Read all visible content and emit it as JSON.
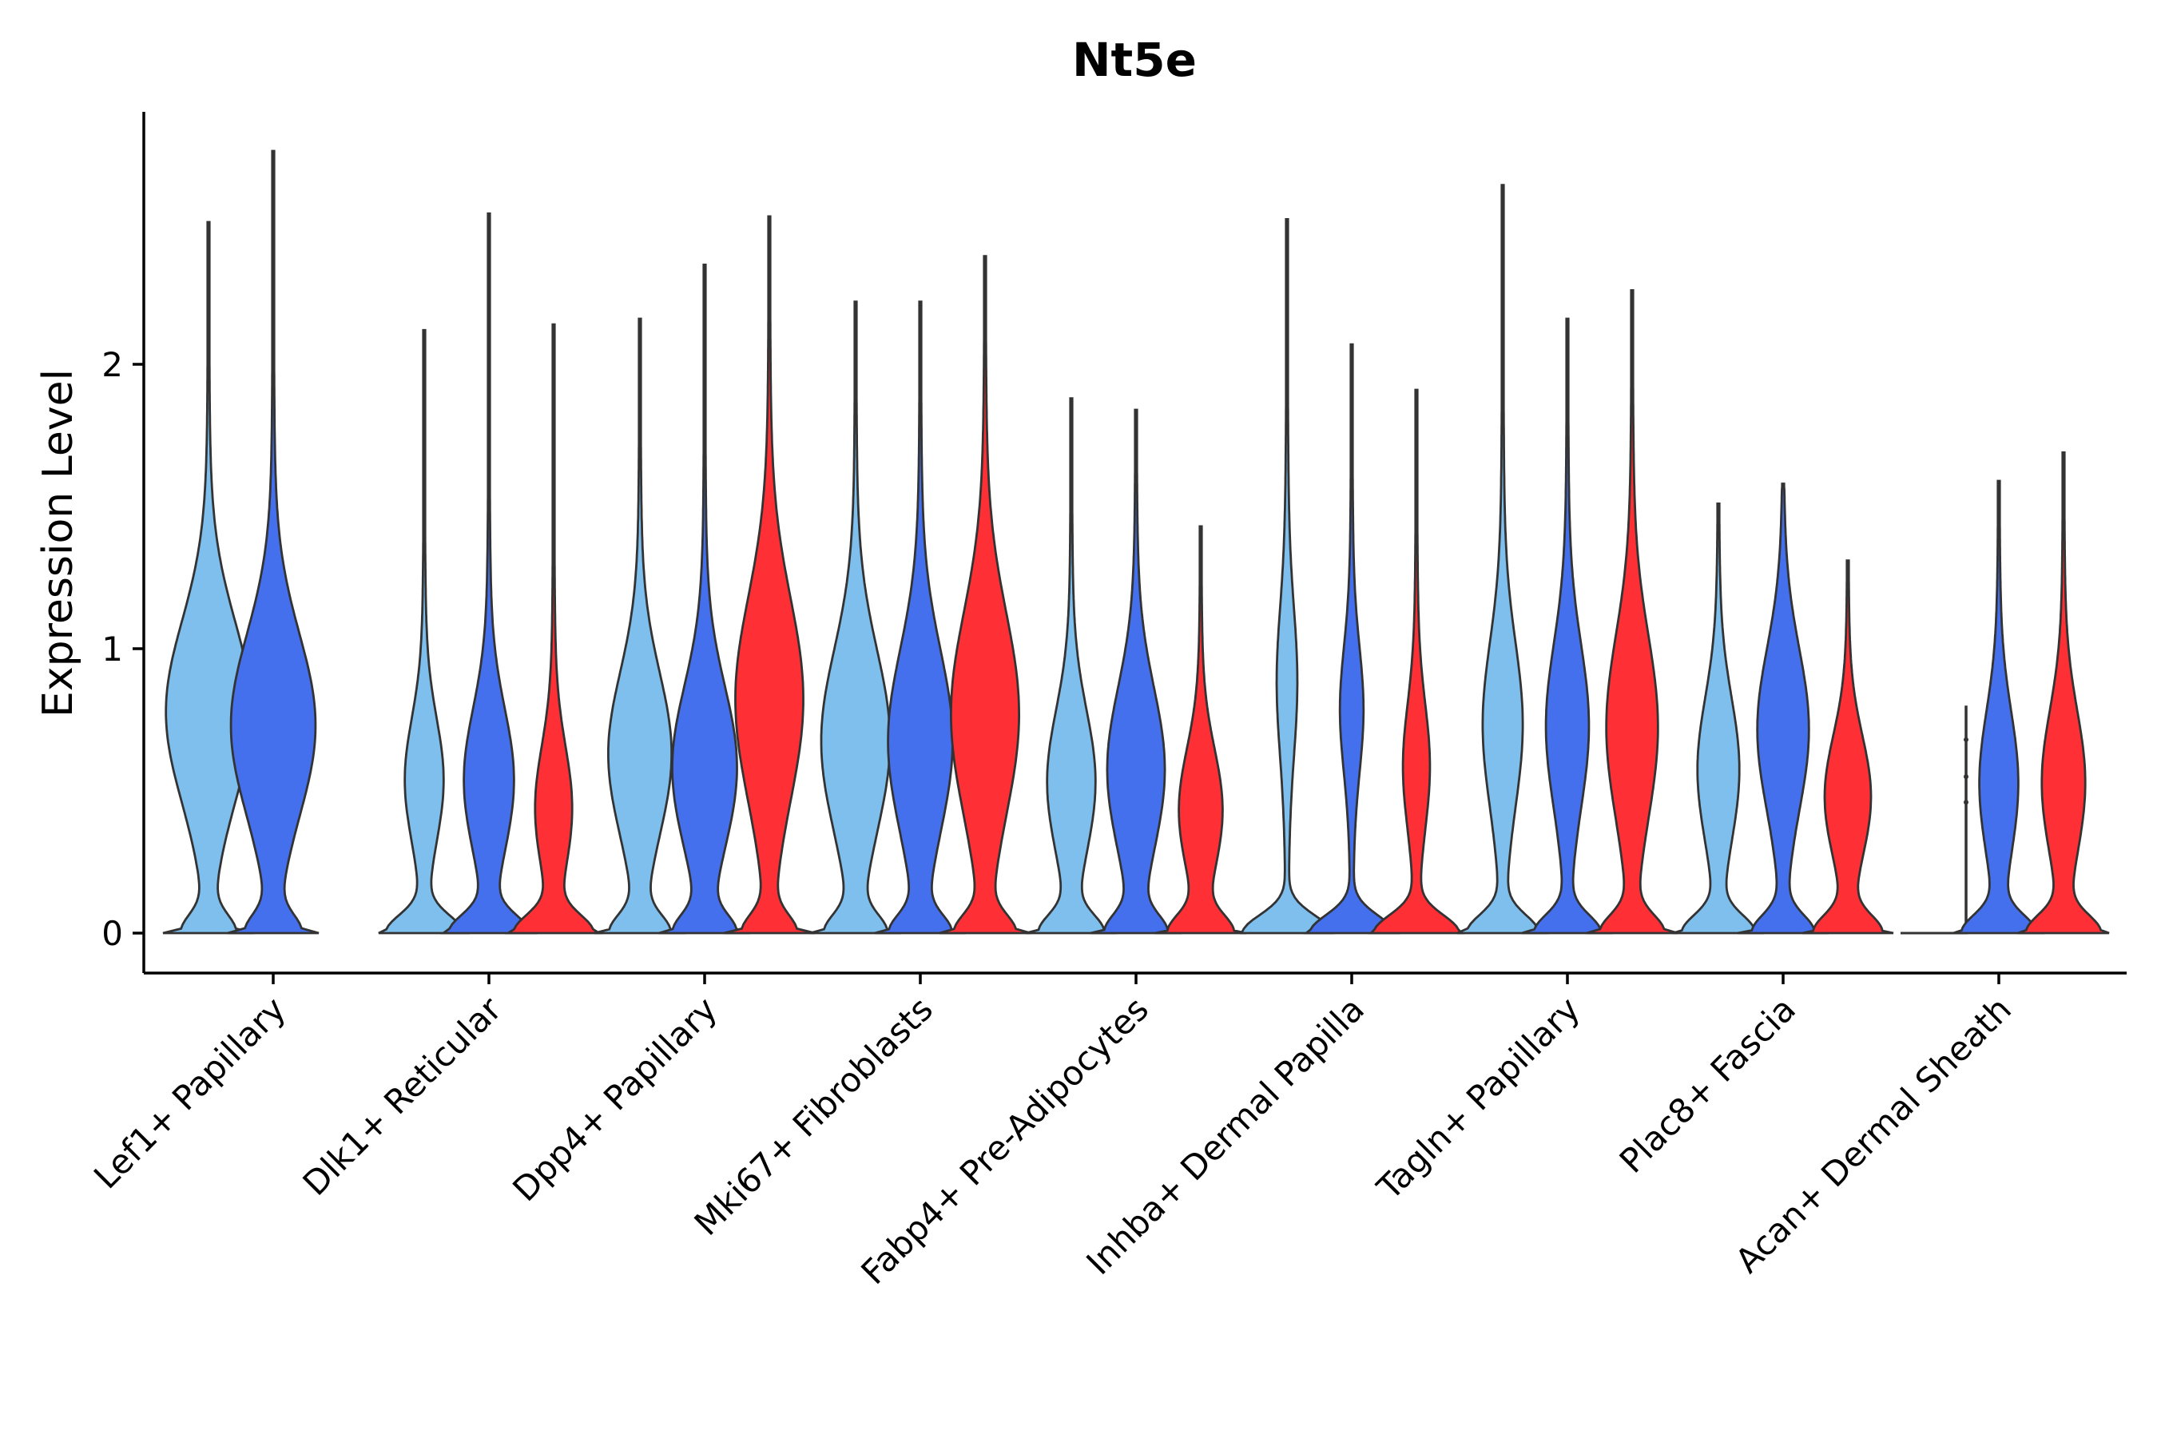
{
  "chart_data": {
    "type": "violin",
    "title": "Nt5e",
    "xlabel": "",
    "ylabel": "Expression Level",
    "ylim": [
      -0.14,
      2.9
    ],
    "yticks": [
      0,
      1,
      2
    ],
    "grid": false,
    "legend": "none",
    "categories": [
      "Lef1+ Papillary",
      "Dlk1+ Reticular",
      "Dpp4+ Papillary",
      "Mki67+ Fibroblasts",
      "Fabp4+ Pre-Adipocytes",
      "Inhba+ Dermal Papilla",
      "Tagln+ Papillary",
      "Plac8+ Fascia",
      "Acan+ Dermal Sheath"
    ],
    "colors": [
      "#7ebfed",
      "#4470ee",
      "#ff3035"
    ],
    "violins": [
      {
        "category": "Lef1+ Papillary",
        "group": 0,
        "max": 2.5,
        "width": 1.0,
        "peak": 0.8,
        "spread": 0.45,
        "zw": 0.5,
        "pw": 0.95
      },
      {
        "category": "Lef1+ Papillary",
        "group": 1,
        "max": 2.75,
        "width": 1.0,
        "peak": 0.75,
        "spread": 0.45,
        "zw": 0.5,
        "pw": 0.92
      },
      {
        "category": "Dlk1+ Reticular",
        "group": 0,
        "max": 2.12,
        "width": 0.7,
        "peak": 0.55,
        "spread": 0.3,
        "zw": 0.75,
        "pw": 0.38
      },
      {
        "category": "Dlk1+ Reticular",
        "group": 1,
        "max": 2.53,
        "width": 0.7,
        "peak": 0.55,
        "spread": 0.35,
        "zw": 0.75,
        "pw": 0.5
      },
      {
        "category": "Dlk1+ Reticular",
        "group": 2,
        "max": 2.14,
        "width": 0.7,
        "peak": 0.45,
        "spread": 0.3,
        "zw": 0.75,
        "pw": 0.35
      },
      {
        "category": "Dpp4+ Papillary",
        "group": 0,
        "max": 2.16,
        "width": 0.7,
        "peak": 0.65,
        "spread": 0.4,
        "zw": 0.55,
        "pw": 0.68
      },
      {
        "category": "Dpp4+ Papillary",
        "group": 1,
        "max": 2.35,
        "width": 0.7,
        "peak": 0.6,
        "spread": 0.4,
        "zw": 0.55,
        "pw": 0.68
      },
      {
        "category": "Dpp4+ Papillary",
        "group": 2,
        "max": 2.52,
        "width": 0.7,
        "peak": 0.85,
        "spread": 0.5,
        "zw": 0.5,
        "pw": 0.75
      },
      {
        "category": "Mki67+ Fibroblasts",
        "group": 0,
        "max": 2.22,
        "width": 0.7,
        "peak": 0.7,
        "spread": 0.45,
        "zw": 0.55,
        "pw": 0.75
      },
      {
        "category": "Mki67+ Fibroblasts",
        "group": 1,
        "max": 2.22,
        "width": 0.7,
        "peak": 0.7,
        "spread": 0.45,
        "zw": 0.55,
        "pw": 0.7
      },
      {
        "category": "Mki67+ Fibroblasts",
        "group": 2,
        "max": 2.38,
        "width": 0.7,
        "peak": 0.8,
        "spread": 0.5,
        "zw": 0.55,
        "pw": 0.75
      },
      {
        "category": "Fabp4+ Pre-Adipocytes",
        "group": 0,
        "max": 1.88,
        "width": 0.7,
        "peak": 0.55,
        "spread": 0.35,
        "zw": 0.6,
        "pw": 0.5
      },
      {
        "category": "Fabp4+ Pre-Adipocytes",
        "group": 1,
        "max": 1.84,
        "width": 0.7,
        "peak": 0.6,
        "spread": 0.4,
        "zw": 0.55,
        "pw": 0.62
      },
      {
        "category": "Fabp4+ Pre-Adipocytes",
        "group": 2,
        "max": 1.43,
        "width": 0.7,
        "peak": 0.45,
        "spread": 0.3,
        "zw": 0.6,
        "pw": 0.45
      },
      {
        "category": "Inhba+ Dermal Papilla",
        "group": 0,
        "max": 2.51,
        "width": 0.7,
        "peak": 0.9,
        "spread": 0.35,
        "zw": 0.9,
        "pw": 0.18
      },
      {
        "category": "Inhba+ Dermal Papilla",
        "group": 1,
        "max": 2.07,
        "width": 0.7,
        "peak": 0.8,
        "spread": 0.3,
        "zw": 0.85,
        "pw": 0.22
      },
      {
        "category": "Inhba+ Dermal Papilla",
        "group": 2,
        "max": 1.91,
        "width": 0.7,
        "peak": 0.6,
        "spread": 0.3,
        "zw": 0.85,
        "pw": 0.25
      },
      {
        "category": "Tagln+ Papillary",
        "group": 0,
        "max": 2.63,
        "width": 0.7,
        "peak": 0.75,
        "spread": 0.4,
        "zw": 0.7,
        "pw": 0.4
      },
      {
        "category": "Tagln+ Papillary",
        "group": 1,
        "max": 2.16,
        "width": 0.7,
        "peak": 0.75,
        "spread": 0.4,
        "zw": 0.65,
        "pw": 0.45
      },
      {
        "category": "Tagln+ Papillary",
        "group": 2,
        "max": 2.26,
        "width": 0.7,
        "peak": 0.75,
        "spread": 0.45,
        "zw": 0.6,
        "pw": 0.55
      },
      {
        "category": "Plac8+ Fascia",
        "group": 0,
        "max": 1.51,
        "width": 0.7,
        "peak": 0.6,
        "spread": 0.35,
        "zw": 0.7,
        "pw": 0.45
      },
      {
        "category": "Plac8+ Fascia",
        "group": 1,
        "max": 1.58,
        "width": 0.7,
        "peak": 0.75,
        "spread": 0.4,
        "zw": 0.6,
        "pw": 0.6
      },
      {
        "category": "Plac8+ Fascia",
        "group": 2,
        "max": 1.31,
        "width": 0.7,
        "peak": 0.5,
        "spread": 0.3,
        "zw": 0.65,
        "pw": 0.5
      },
      {
        "category": "Acan+ Dermal Sheath",
        "group": 0,
        "max": 0.8,
        "width": 0.7,
        "peak": 0.0,
        "spread": 0.1,
        "zw": 0.0,
        "pw": 0.0,
        "flat": true
      },
      {
        "category": "Acan+ Dermal Sheath",
        "group": 1,
        "max": 1.59,
        "width": 0.7,
        "peak": 0.55,
        "spread": 0.35,
        "zw": 0.7,
        "pw": 0.4
      },
      {
        "category": "Acan+ Dermal Sheath",
        "group": 2,
        "max": 1.69,
        "width": 0.7,
        "peak": 0.55,
        "spread": 0.35,
        "zw": 0.7,
        "pw": 0.45
      }
    ]
  }
}
